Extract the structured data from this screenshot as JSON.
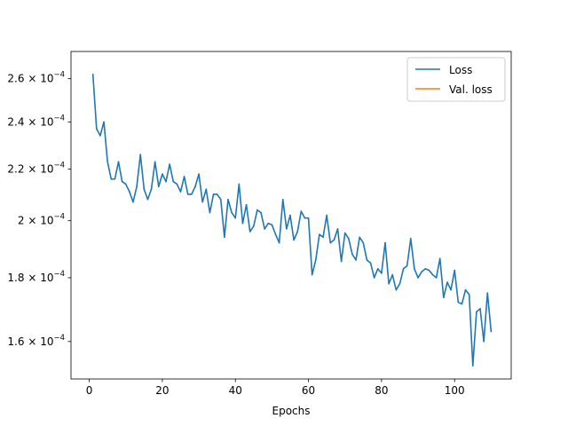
{
  "chart_data": {
    "type": "line",
    "title": "",
    "xlabel": "Epochs",
    "ylabel": "",
    "yscale": "log",
    "xlim": [
      -5,
      115.5
    ],
    "ylim": [
      0.0001493,
      0.0002734
    ],
    "xticks": [
      0,
      20,
      40,
      60,
      80,
      100
    ],
    "yticks": [
      {
        "value": 0.00016,
        "mantissa": "1.6",
        "exponent": "−4"
      },
      {
        "value": 0.00018,
        "mantissa": "1.8",
        "exponent": "−4"
      },
      {
        "value": 0.0002,
        "mantissa": "2",
        "exponent": "−4"
      },
      {
        "value": 0.00022,
        "mantissa": "2.2",
        "exponent": "−4"
      },
      {
        "value": 0.00024,
        "mantissa": "2.4",
        "exponent": "−4"
      },
      {
        "value": 0.00026,
        "mantissa": "2.6",
        "exponent": "−4"
      }
    ],
    "grid": false,
    "legend_position": "top-right",
    "series": [
      {
        "name": "Loss",
        "color": "#1f77b4",
        "x": [
          1,
          2,
          3,
          4,
          5,
          6,
          7,
          8,
          9,
          10,
          11,
          12,
          13,
          14,
          15,
          16,
          17,
          18,
          19,
          20,
          21,
          22,
          23,
          24,
          25,
          26,
          27,
          28,
          29,
          30,
          31,
          32,
          33,
          34,
          35,
          36,
          37,
          38,
          39,
          40,
          41,
          42,
          43,
          44,
          45,
          46,
          47,
          48,
          49,
          50,
          51,
          52,
          53,
          54,
          55,
          56,
          57,
          58,
          59,
          60,
          61,
          62,
          63,
          64,
          65,
          66,
          67,
          68,
          69,
          70,
          71,
          72,
          73,
          74,
          75,
          76,
          77,
          78,
          79,
          80,
          81,
          82,
          83,
          84,
          85,
          86,
          87,
          88,
          89,
          90,
          91,
          92,
          93,
          94,
          95,
          96,
          97,
          98,
          99,
          100,
          101,
          102,
          103,
          104,
          105,
          106,
          107,
          108,
          109,
          110
        ],
        "y": [
          0.000262,
          0.000237,
          0.000234,
          0.00024,
          0.000223,
          0.000216,
          0.000216,
          0.000223,
          0.000215,
          0.000214,
          0.000211,
          0.000207,
          0.000213,
          0.000226,
          0.000212,
          0.000208,
          0.000212,
          0.000223,
          0.000213,
          0.000218,
          0.000215,
          0.000222,
          0.000215,
          0.000214,
          0.000211,
          0.000217,
          0.00021,
          0.00021,
          0.000213,
          0.000218,
          0.000207,
          0.000212,
          0.000203,
          0.00021,
          0.00021,
          0.000208,
          0.000194,
          0.000208,
          0.000203,
          0.000201,
          0.000214,
          0.000199,
          0.000206,
          0.000196,
          0.000198,
          0.000204,
          0.000203,
          0.000197,
          0.000199,
          0.0001985,
          0.000195,
          0.000192,
          0.000208,
          0.000197,
          0.000202,
          0.000193,
          0.000196,
          0.0002035,
          0.000201,
          0.000201,
          0.000181,
          0.000186,
          0.000195,
          0.000194,
          0.000202,
          0.000192,
          0.000193,
          0.000197,
          0.0001855,
          0.0001955,
          0.0001935,
          0.000188,
          0.000186,
          0.000194,
          0.000192,
          0.000186,
          0.000185,
          0.00018,
          0.000183,
          0.0001815,
          0.000192,
          0.000178,
          0.000181,
          0.000176,
          0.000178,
          0.000183,
          0.000184,
          0.0001935,
          0.000183,
          0.00018,
          0.000182,
          0.000183,
          0.0001825,
          0.000181,
          0.00018,
          0.0001865,
          0.0001735,
          0.0001785,
          0.000176,
          0.0001825,
          0.000172,
          0.0001715,
          0.000176,
          0.0001745,
          0.000153,
          0.000169,
          0.00017,
          0.00016,
          0.000175,
          0.000163
        ]
      },
      {
        "name": "Val. loss",
        "color": "#ff7f0e",
        "x": [],
        "y": []
      }
    ]
  }
}
